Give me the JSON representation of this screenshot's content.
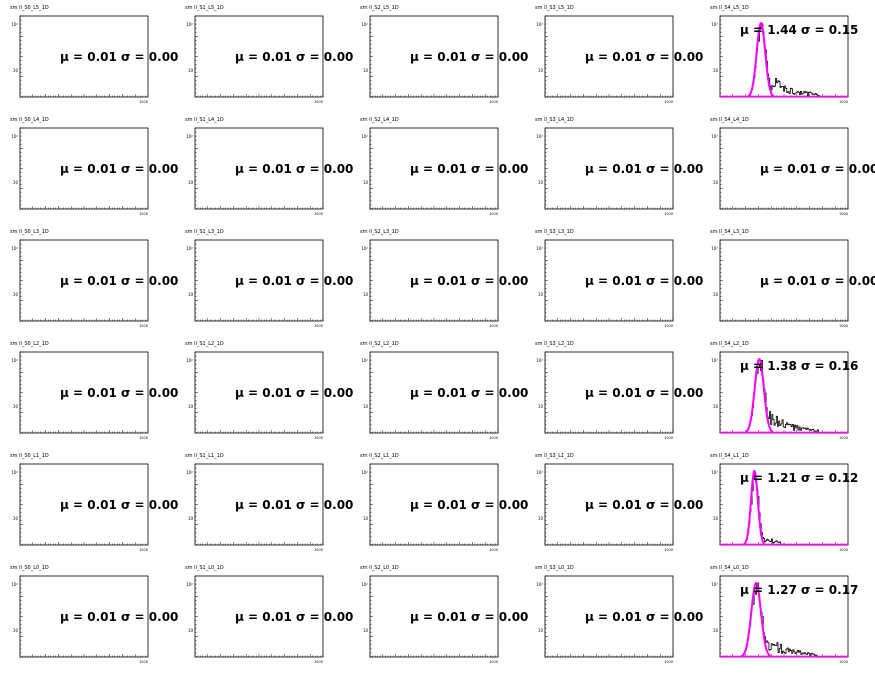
{
  "style": {
    "frame_color": "#000000",
    "hist_color": "#000000",
    "fit_color": "#ff00ff"
  },
  "chart_data": [
    {
      "title": "sm ll_S0_L5_1D",
      "type": "histogram",
      "stat_label": "μ = 0.01 σ = 0.00",
      "mu": 0.01,
      "sigma": 0.0,
      "has_fit": false,
      "log_y": true,
      "y_tick_labels": [
        "10²",
        "10"
      ],
      "x_tick_labels": [
        "1000"
      ]
    },
    {
      "title": "sm ll_S1_L5_1D",
      "type": "histogram",
      "stat_label": "μ = 0.01 σ = 0.00",
      "mu": 0.01,
      "sigma": 0.0,
      "has_fit": false,
      "log_y": true,
      "y_tick_labels": [
        "10²",
        "10"
      ],
      "x_tick_labels": [
        "1000"
      ]
    },
    {
      "title": "sm ll_S2_L5_1D",
      "type": "histogram",
      "stat_label": "μ = 0.01 σ = 0.00",
      "mu": 0.01,
      "sigma": 0.0,
      "has_fit": false,
      "log_y": true,
      "y_tick_labels": [
        "10²",
        "10"
      ],
      "x_tick_labels": [
        "1000"
      ]
    },
    {
      "title": "sm ll_S3_L5_1D",
      "type": "histogram",
      "stat_label": "μ = 0.01 σ = 0.00",
      "mu": 0.01,
      "sigma": 0.0,
      "has_fit": false,
      "log_y": true,
      "y_tick_labels": [
        "10²",
        "10"
      ],
      "x_tick_labels": [
        "1000"
      ]
    },
    {
      "title": "sm ll_S4_L5_1D",
      "type": "histogram",
      "stat_label": "μ = 1.44 σ = 0.15",
      "mu": 1.44,
      "sigma": 0.15,
      "has_fit": true,
      "tail": 1.0,
      "log_y": true,
      "y_tick_labels": [
        "10²",
        "10"
      ],
      "x_tick_labels": [
        "1000"
      ]
    },
    {
      "title": "sm ll_S0_L4_1D",
      "type": "histogram",
      "stat_label": "μ = 0.01 σ = 0.00",
      "mu": 0.01,
      "sigma": 0.0,
      "has_fit": false,
      "log_y": true,
      "y_tick_labels": [
        "10²",
        "10"
      ],
      "x_tick_labels": [
        "1000"
      ]
    },
    {
      "title": "sm ll_S1_L4_1D",
      "type": "histogram",
      "stat_label": "μ = 0.01 σ = 0.00",
      "mu": 0.01,
      "sigma": 0.0,
      "has_fit": false,
      "log_y": true,
      "y_tick_labels": [
        "10²",
        "10"
      ],
      "x_tick_labels": [
        "1000"
      ]
    },
    {
      "title": "sm ll_S2_L4_1D",
      "type": "histogram",
      "stat_label": "μ = 0.01 σ = 0.00",
      "mu": 0.01,
      "sigma": 0.0,
      "has_fit": false,
      "log_y": true,
      "y_tick_labels": [
        "10²",
        "10"
      ],
      "x_tick_labels": [
        "1000"
      ]
    },
    {
      "title": "sm ll_S3_L4_1D",
      "type": "histogram",
      "stat_label": "μ = 0.01 σ = 0.00",
      "mu": 0.01,
      "sigma": 0.0,
      "has_fit": false,
      "log_y": true,
      "y_tick_labels": [
        "10²",
        "10"
      ],
      "x_tick_labels": [
        "1000"
      ]
    },
    {
      "title": "sm ll_S4_L4_1D",
      "type": "histogram",
      "stat_label": "μ = 0.01 σ = 0.00",
      "mu": 0.01,
      "sigma": 0.0,
      "has_fit": false,
      "log_y": true,
      "y_tick_labels": [
        "10²",
        "10"
      ],
      "x_tick_labels": [
        "1000"
      ]
    },
    {
      "title": "sm ll_S0_L3_1D",
      "type": "histogram",
      "stat_label": "μ = 0.01 σ = 0.00",
      "mu": 0.01,
      "sigma": 0.0,
      "has_fit": false,
      "log_y": true,
      "y_tick_labels": [
        "10²",
        "10"
      ],
      "x_tick_labels": [
        "1000"
      ]
    },
    {
      "title": "sm ll_S1_L3_1D",
      "type": "histogram",
      "stat_label": "μ = 0.01 σ = 0.00",
      "mu": 0.01,
      "sigma": 0.0,
      "has_fit": false,
      "log_y": true,
      "y_tick_labels": [
        "10²",
        "10"
      ],
      "x_tick_labels": [
        "1000"
      ]
    },
    {
      "title": "sm ll_S2_L3_1D",
      "type": "histogram",
      "stat_label": "μ = 0.01 σ = 0.00",
      "mu": 0.01,
      "sigma": 0.0,
      "has_fit": false,
      "log_y": true,
      "y_tick_labels": [
        "10²",
        "10"
      ],
      "x_tick_labels": [
        "1000"
      ]
    },
    {
      "title": "sm ll_S3_L3_1D",
      "type": "histogram",
      "stat_label": "μ = 0.01 σ = 0.00",
      "mu": 0.01,
      "sigma": 0.0,
      "has_fit": false,
      "log_y": true,
      "y_tick_labels": [
        "10²",
        "10"
      ],
      "x_tick_labels": [
        "1000"
      ]
    },
    {
      "title": "sm ll_S4_L3_1D",
      "type": "histogram",
      "stat_label": "μ = 0.01 σ = 0.00",
      "mu": 0.01,
      "sigma": 0.0,
      "has_fit": false,
      "log_y": true,
      "y_tick_labels": [
        "10²",
        "10"
      ],
      "x_tick_labels": [
        "1000"
      ]
    },
    {
      "title": "sm ll_S0_L2_1D",
      "type": "histogram",
      "stat_label": "μ = 0.01 σ = 0.00",
      "mu": 0.01,
      "sigma": 0.0,
      "has_fit": false,
      "log_y": true,
      "y_tick_labels": [
        "10²",
        "10"
      ],
      "x_tick_labels": [
        "1000"
      ]
    },
    {
      "title": "sm ll_S1_L2_1D",
      "type": "histogram",
      "stat_label": "μ = 0.01 σ = 0.00",
      "mu": 0.01,
      "sigma": 0.0,
      "has_fit": false,
      "log_y": true,
      "y_tick_labels": [
        "10²",
        "10"
      ],
      "x_tick_labels": [
        "1000"
      ]
    },
    {
      "title": "sm ll_S2_L2_1D",
      "type": "histogram",
      "stat_label": "μ = 0.01 σ = 0.00",
      "mu": 0.01,
      "sigma": 0.0,
      "has_fit": false,
      "log_y": true,
      "y_tick_labels": [
        "10²",
        "10"
      ],
      "x_tick_labels": [
        "1000"
      ]
    },
    {
      "title": "sm ll_S3_L2_1D",
      "type": "histogram",
      "stat_label": "μ = 0.01 σ = 0.00",
      "mu": 0.01,
      "sigma": 0.0,
      "has_fit": false,
      "log_y": true,
      "y_tick_labels": [
        "10²",
        "10"
      ],
      "x_tick_labels": [
        "1000"
      ]
    },
    {
      "title": "sm ll_S4_L2_1D",
      "type": "histogram",
      "stat_label": "μ = 1.38 σ = 0.16",
      "mu": 1.38,
      "sigma": 0.16,
      "has_fit": true,
      "tail": 1.0,
      "log_y": true,
      "y_tick_labels": [
        "10²",
        "10"
      ],
      "x_tick_labels": [
        "1000"
      ]
    },
    {
      "title": "sm ll_S0_L1_1D",
      "type": "histogram",
      "stat_label": "μ = 0.01 σ = 0.00",
      "mu": 0.01,
      "sigma": 0.0,
      "has_fit": false,
      "log_y": true,
      "y_tick_labels": [
        "10²",
        "10"
      ],
      "x_tick_labels": [
        "1000"
      ]
    },
    {
      "title": "sm ll_S1_L1_1D",
      "type": "histogram",
      "stat_label": "μ = 0.01 σ = 0.00",
      "mu": 0.01,
      "sigma": 0.0,
      "has_fit": false,
      "log_y": true,
      "y_tick_labels": [
        "10²",
        "10"
      ],
      "x_tick_labels": [
        "1000"
      ]
    },
    {
      "title": "sm ll_S2_L1_1D",
      "type": "histogram",
      "stat_label": "μ = 0.01 σ = 0.00",
      "mu": 0.01,
      "sigma": 0.0,
      "has_fit": false,
      "log_y": true,
      "y_tick_labels": [
        "10²",
        "10"
      ],
      "x_tick_labels": [
        "1000"
      ]
    },
    {
      "title": "sm ll_S3_L1_1D",
      "type": "histogram",
      "stat_label": "μ = 0.01 σ = 0.00",
      "mu": 0.01,
      "sigma": 0.0,
      "has_fit": false,
      "log_y": true,
      "y_tick_labels": [
        "10²",
        "10"
      ],
      "x_tick_labels": [
        "1000"
      ]
    },
    {
      "title": "sm ll_S4_L1_1D",
      "type": "histogram",
      "stat_label": "μ = 1.21 σ = 0.12",
      "mu": 1.21,
      "sigma": 0.12,
      "has_fit": true,
      "tail": 0.35,
      "log_y": true,
      "y_tick_labels": [
        "10²",
        "10"
      ],
      "x_tick_labels": [
        "1000"
      ]
    },
    {
      "title": "sm ll_S0_L0_1D",
      "type": "histogram",
      "stat_label": "μ = 0.01 σ = 0.00",
      "mu": 0.01,
      "sigma": 0.0,
      "has_fit": false,
      "log_y": true,
      "y_tick_labels": [
        "10²",
        "10"
      ],
      "x_tick_labels": [
        "1000"
      ]
    },
    {
      "title": "sm ll_S1_L0_1D",
      "type": "histogram",
      "stat_label": "μ = 0.01 σ = 0.00",
      "mu": 0.01,
      "sigma": 0.0,
      "has_fit": false,
      "log_y": true,
      "y_tick_labels": [
        "10²",
        "10"
      ],
      "x_tick_labels": [
        "1000"
      ]
    },
    {
      "title": "sm ll_S2_L0_1D",
      "type": "histogram",
      "stat_label": "μ = 0.01 σ = 0.00",
      "mu": 0.01,
      "sigma": 0.0,
      "has_fit": false,
      "log_y": true,
      "y_tick_labels": [
        "10²",
        "10"
      ],
      "x_tick_labels": [
        "1000"
      ]
    },
    {
      "title": "sm ll_S3_L0_1D",
      "type": "histogram",
      "stat_label": "μ = 0.01 σ = 0.00",
      "mu": 0.01,
      "sigma": 0.0,
      "has_fit": false,
      "log_y": true,
      "y_tick_labels": [
        "10²",
        "10"
      ],
      "x_tick_labels": [
        "1000"
      ]
    },
    {
      "title": "sm ll_S4_L0_1D",
      "type": "histogram",
      "stat_label": "μ = 1.27 σ = 0.17",
      "mu": 1.27,
      "sigma": 0.17,
      "has_fit": true,
      "tail": 1.0,
      "log_y": true,
      "y_tick_labels": [
        "10²",
        "10"
      ],
      "x_tick_labels": [
        "1000"
      ]
    }
  ]
}
